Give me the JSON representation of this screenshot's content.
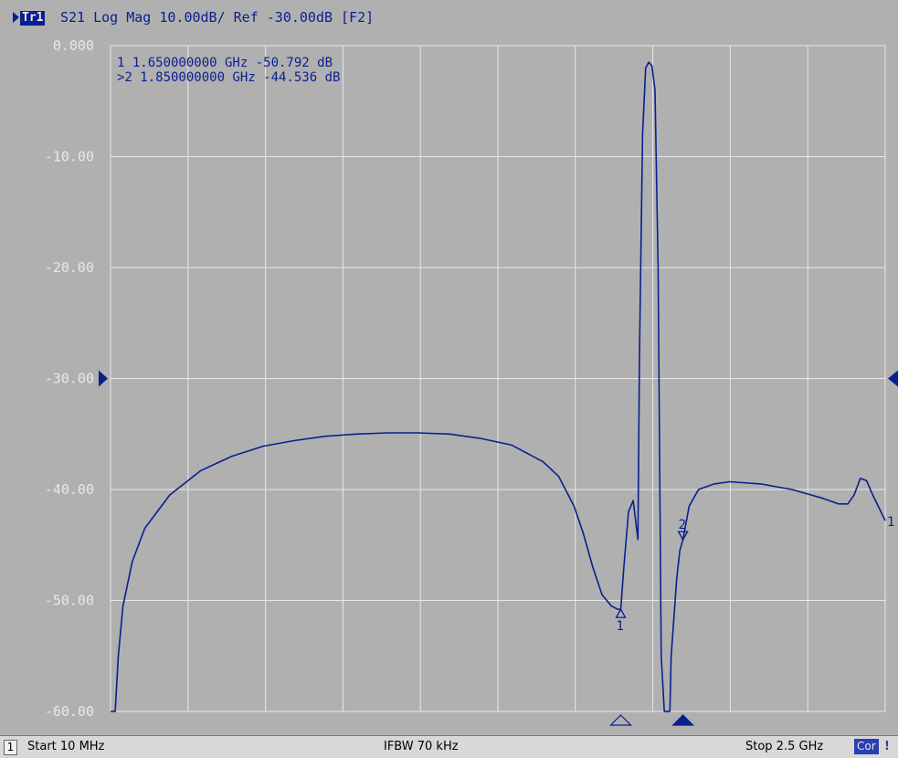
{
  "header": {
    "trace_badge": "Tr1",
    "title": "S21 Log Mag 10.00dB/ Ref -30.00dB [F2]"
  },
  "markers": {
    "readouts": [
      {
        "prefix": " 1",
        "freq": "1.650000000 GHz",
        "value": "-50.792 dB"
      },
      {
        "prefix": ">2",
        "freq": "1.850000000 GHz",
        "value": "-44.536 dB"
      }
    ]
  },
  "status": {
    "channel": "1",
    "start": "Start 10 MHz",
    "ifbw": "IFBW 70 kHz",
    "stop": "Stop 2.5 GHz",
    "cor": "Cor",
    "flag": "!"
  },
  "colors": {
    "trace": "#0a1f8f",
    "grid": "#e8e8e8",
    "plot_bg": "#b0b0b0",
    "label": "#e8e8e8"
  },
  "chart_data": {
    "type": "line",
    "title": "S21 Log Mag 10.00dB/ Ref -30.00dB [F2]",
    "x_unit": "GHz",
    "xlim": [
      0.01,
      2.5
    ],
    "ylim": [
      -60,
      0
    ],
    "y_ticks": [
      0,
      -10,
      -20,
      -30,
      -40,
      -50,
      -60
    ],
    "y_tick_labels": [
      "0.000",
      "-10.00",
      "-20.00",
      "-30.00",
      "-40.00",
      "-50.00",
      "-60.00"
    ],
    "x_divisions": 10,
    "reference_level": -30,
    "grid": true,
    "series": [
      {
        "x": [
          0.01,
          0.025,
          0.035,
          0.05,
          0.08,
          0.12,
          0.2,
          0.3,
          0.4,
          0.5,
          0.6,
          0.7,
          0.8,
          0.9,
          1.0,
          1.1,
          1.2,
          1.3,
          1.4,
          1.45,
          1.5,
          1.53,
          1.56,
          1.59,
          1.62,
          1.64,
          1.65,
          1.66,
          1.675,
          1.69,
          1.705,
          1.71,
          1.72,
          1.73,
          1.74,
          1.75,
          1.76,
          1.77,
          1.78,
          1.79,
          1.8,
          1.808,
          1.812,
          1.83,
          1.84,
          1.85,
          1.87,
          1.9,
          1.95,
          2.0,
          2.1,
          2.2,
          2.3,
          2.35,
          2.38,
          2.4,
          2.42,
          2.44,
          2.46,
          2.5
        ],
        "y": [
          -60,
          -60,
          -55,
          -50.5,
          -46.5,
          -43.5,
          -40.5,
          -38.3,
          -37,
          -36.1,
          -35.6,
          -35.2,
          -35,
          -34.9,
          -34.9,
          -35,
          -35.4,
          -36,
          -37.5,
          -38.8,
          -41.5,
          -44,
          -47,
          -49.5,
          -50.5,
          -50.8,
          -50.8,
          -47,
          -42,
          -41,
          -44.5,
          -28,
          -8,
          -2,
          -1.5,
          -1.8,
          -4,
          -20,
          -55,
          -60,
          -60,
          -60,
          -55,
          -48,
          -45.5,
          -44.5,
          -41.5,
          -40,
          -39.5,
          -39.3,
          -39.5,
          -40,
          -40.8,
          -41.3,
          -41.3,
          -40.5,
          -39,
          -39.2,
          -40.5,
          -42.8
        ]
      }
    ],
    "markers": [
      {
        "id": "1",
        "x": 1.65,
        "y": -50.792
      },
      {
        "id": "2",
        "x": 1.85,
        "y": -44.536
      }
    ]
  }
}
